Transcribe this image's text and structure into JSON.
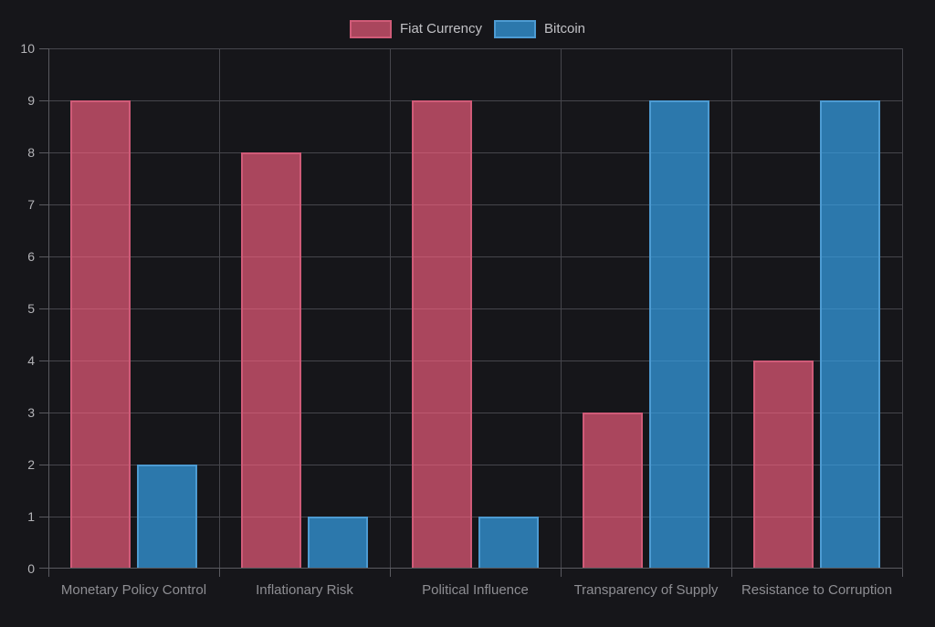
{
  "page": {
    "background": "#16161a"
  },
  "colors": {
    "grid_line": "#46464c",
    "axis_line": "#5a5a60",
    "y_tick_label": "#b3b3b7",
    "x_category_label": "#8e8e93",
    "legend_label": "#c1c1c5"
  },
  "chart_data": {
    "type": "bar",
    "title": "",
    "xlabel": "",
    "ylabel": "",
    "categories": [
      "Monetary Policy Control",
      "Inflationary Risk",
      "Political Influence",
      "Transparency of Supply",
      "Resistance to Corruption"
    ],
    "series": [
      {
        "name": "Fiat Currency",
        "values": [
          9,
          8,
          9,
          3,
          4
        ],
        "fill": "rgba(255, 99, 132, 0.64)",
        "border": "#d05b78"
      },
      {
        "name": "Bitcoin",
        "values": [
          2,
          1,
          1,
          9,
          9
        ],
        "fill": "rgba(54, 162, 235, 0.70)",
        "border": "#4d9bd2"
      }
    ],
    "ylim": [
      0,
      10
    ],
    "yticks": [
      0,
      1,
      2,
      3,
      4,
      5,
      6,
      7,
      8,
      9,
      10
    ],
    "grid": true,
    "legend_position": "top"
  }
}
